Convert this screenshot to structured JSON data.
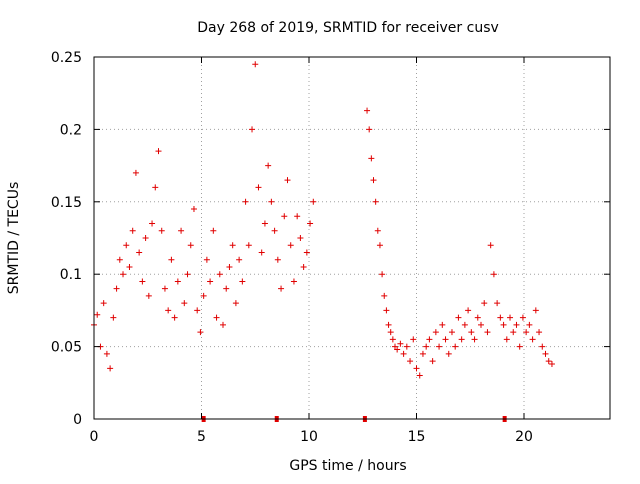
{
  "chart_data": {
    "type": "scatter",
    "title": "Day 268 of 2019, SRMTID for receiver cusv",
    "xlabel": "GPS time / hours",
    "ylabel": "SRMTID / TECUs",
    "xlim": [
      0,
      24
    ],
    "ylim": [
      0,
      0.25
    ],
    "grid": true,
    "point_style": "plus",
    "point_color": "#e00000",
    "x_tick_labels": [
      "0",
      "5",
      "10",
      "15",
      "20"
    ],
    "y_tick_labels": [
      "0",
      "0.05",
      "0.1",
      "0.15",
      "0.2",
      "0.25"
    ],
    "gap_markers_x": [
      5.1,
      8.5,
      12.6,
      19.1
    ],
    "series": [
      {
        "name": "SRMTID",
        "x": [
          0.0,
          0.15,
          0.3,
          0.45,
          0.6,
          0.75,
          0.9,
          1.05,
          1.2,
          1.35,
          1.5,
          1.65,
          1.8,
          1.95,
          2.1,
          2.25,
          2.4,
          2.55,
          2.7,
          2.85,
          3.0,
          3.15,
          3.3,
          3.45,
          3.6,
          3.75,
          3.9,
          4.05,
          4.2,
          4.35,
          4.5,
          4.65,
          4.8,
          4.95,
          5.1,
          5.25,
          5.4,
          5.55,
          5.7,
          5.85,
          6.0,
          6.15,
          6.3,
          6.45,
          6.6,
          6.75,
          6.9,
          7.05,
          7.2,
          7.35,
          7.5,
          7.65,
          7.8,
          7.95,
          8.1,
          8.25,
          8.4,
          8.55,
          8.7,
          8.85,
          9.0,
          9.15,
          9.3,
          9.45,
          9.6,
          9.75,
          9.9,
          10.05,
          10.2,
          12.7,
          12.8,
          12.9,
          13.0,
          13.1,
          13.2,
          13.3,
          13.4,
          13.5,
          13.6,
          13.7,
          13.8,
          13.9,
          14.0,
          14.1,
          14.25,
          14.4,
          14.55,
          14.7,
          14.85,
          15.0,
          15.15,
          15.3,
          15.45,
          15.6,
          15.75,
          15.9,
          16.05,
          16.2,
          16.35,
          16.5,
          16.65,
          16.8,
          16.95,
          17.1,
          17.25,
          17.4,
          17.55,
          17.7,
          17.85,
          18.0,
          18.15,
          18.3,
          18.45,
          18.6,
          18.75,
          18.9,
          19.05,
          19.2,
          19.35,
          19.5,
          19.65,
          19.8,
          19.95,
          20.1,
          20.25,
          20.4,
          20.55,
          20.7,
          20.85,
          21.0,
          21.15,
          21.3
        ],
        "y": [
          0.065,
          0.072,
          0.05,
          0.08,
          0.045,
          0.035,
          0.07,
          0.09,
          0.11,
          0.1,
          0.12,
          0.105,
          0.13,
          0.17,
          0.115,
          0.095,
          0.125,
          0.085,
          0.135,
          0.16,
          0.185,
          0.13,
          0.09,
          0.075,
          0.11,
          0.07,
          0.095,
          0.13,
          0.08,
          0.1,
          0.12,
          0.145,
          0.075,
          0.06,
          0.085,
          0.11,
          0.095,
          0.13,
          0.07,
          0.1,
          0.065,
          0.09,
          0.105,
          0.12,
          0.08,
          0.11,
          0.095,
          0.15,
          0.12,
          0.2,
          0.245,
          0.16,
          0.115,
          0.135,
          0.175,
          0.15,
          0.13,
          0.11,
          0.09,
          0.14,
          0.165,
          0.12,
          0.095,
          0.14,
          0.125,
          0.105,
          0.115,
          0.135,
          0.15,
          0.213,
          0.2,
          0.18,
          0.165,
          0.15,
          0.13,
          0.12,
          0.1,
          0.085,
          0.075,
          0.065,
          0.06,
          0.055,
          0.05,
          0.048,
          0.052,
          0.045,
          0.05,
          0.04,
          0.055,
          0.035,
          0.03,
          0.045,
          0.05,
          0.055,
          0.04,
          0.06,
          0.05,
          0.065,
          0.055,
          0.045,
          0.06,
          0.05,
          0.07,
          0.055,
          0.065,
          0.075,
          0.06,
          0.055,
          0.07,
          0.065,
          0.08,
          0.06,
          0.12,
          0.1,
          0.08,
          0.07,
          0.065,
          0.055,
          0.07,
          0.06,
          0.065,
          0.05,
          0.07,
          0.06,
          0.065,
          0.055,
          0.075,
          0.06,
          0.05,
          0.045,
          0.04,
          0.038
        ]
      }
    ]
  }
}
